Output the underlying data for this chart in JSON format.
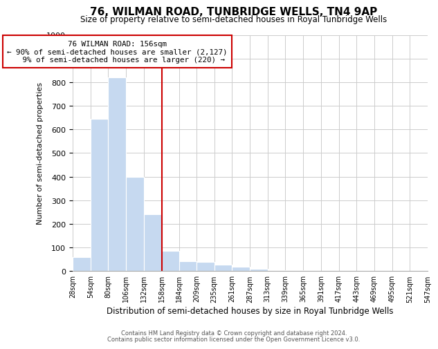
{
  "title": "76, WILMAN ROAD, TUNBRIDGE WELLS, TN4 9AP",
  "subtitle": "Size of property relative to semi-detached houses in Royal Tunbridge Wells",
  "xlabel": "Distribution of semi-detached houses by size in Royal Tunbridge Wells",
  "ylabel": "Number of semi-detached properties",
  "bin_edges": [
    28,
    54,
    80,
    106,
    132,
    158,
    184,
    209,
    235,
    261,
    287,
    313,
    339,
    365,
    391,
    417,
    443,
    469,
    495,
    521,
    547
  ],
  "bin_labels": [
    "28sqm",
    "54sqm",
    "80sqm",
    "106sqm",
    "132sqm",
    "158sqm",
    "184sqm",
    "209sqm",
    "235sqm",
    "261sqm",
    "287sqm",
    "313sqm",
    "339sqm",
    "365sqm",
    "391sqm",
    "417sqm",
    "443sqm",
    "469sqm",
    "495sqm",
    "521sqm",
    "547sqm"
  ],
  "counts": [
    60,
    645,
    820,
    400,
    240,
    85,
    43,
    40,
    28,
    18,
    10,
    5,
    3,
    2,
    1,
    2,
    0,
    0,
    0,
    1
  ],
  "bar_color": "#c6d9f0",
  "vline_x": 158,
  "vline_color": "#cc0000",
  "annotation_title": "76 WILMAN ROAD: 156sqm",
  "annotation_line1": "← 90% of semi-detached houses are smaller (2,127)",
  "annotation_line2": "   9% of semi-detached houses are larger (220) →",
  "annotation_box_edge_color": "#cc0000",
  "ylim": [
    0,
    1000
  ],
  "footer1": "Contains HM Land Registry data © Crown copyright and database right 2024.",
  "footer2": "Contains public sector information licensed under the Open Government Licence v3.0.",
  "background_color": "#ffffff",
  "grid_color": "#cccccc",
  "title_fontsize": 11,
  "subtitle_fontsize": 8.5,
  "ylabel_fontsize": 8,
  "xlabel_fontsize": 8.5
}
